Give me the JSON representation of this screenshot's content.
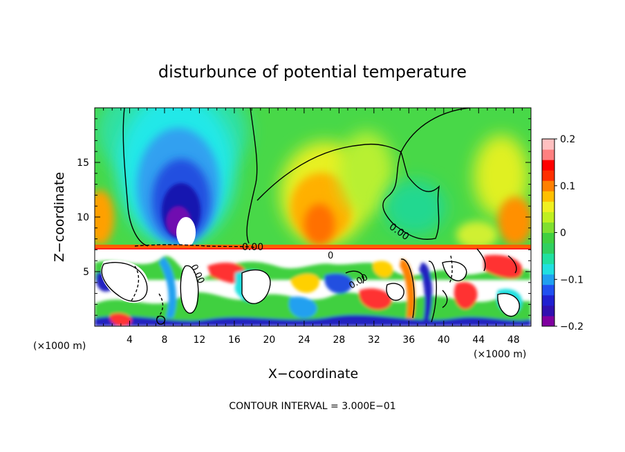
{
  "chart_data": {
    "type": "heatmap",
    "title": "disturbunce of potential temperature",
    "xlabel": "X−coordinate",
    "ylabel": "Z−coordinate",
    "x_unit_label": "(×1000 m)",
    "y_unit_label": "(×1000 m)",
    "footer": "CONTOUR INTERVAL = 3.000E−01",
    "xlim": [
      0,
      50
    ],
    "ylim": [
      0,
      20
    ],
    "x_ticks": [
      4,
      8,
      12,
      16,
      20,
      24,
      28,
      32,
      36,
      40,
      44,
      48
    ],
    "y_ticks": [
      5,
      10,
      15
    ],
    "colorbar": {
      "range": [
        -0.2,
        0.2
      ],
      "ticks": [
        {
          "value": 0.2,
          "label": "0.2"
        },
        {
          "value": 0.1,
          "label": "0.1"
        },
        {
          "value": 0,
          "label": "0"
        },
        {
          "value": -0.1,
          "label": "−0.1"
        },
        {
          "value": -0.2,
          "label": "−0.2"
        }
      ]
    },
    "contour_labels": [
      {
        "text": "0.00",
        "x": 18.6,
        "z": 7.4
      },
      {
        "text": "0.00",
        "x": 35.4,
        "z": 8.8
      },
      {
        "text": "0.00",
        "x": 11.8,
        "z": 4.8
      },
      {
        "text": "0.00",
        "x": 31.2,
        "z": 4.0
      },
      {
        "text": "0",
        "x": 27.2,
        "z": 6.8
      }
    ],
    "colors": {
      "background_field": "#40d040",
      "cold_core": "#2020c0",
      "warm_region": "#ff8000",
      "white": "#ffffff"
    }
  }
}
